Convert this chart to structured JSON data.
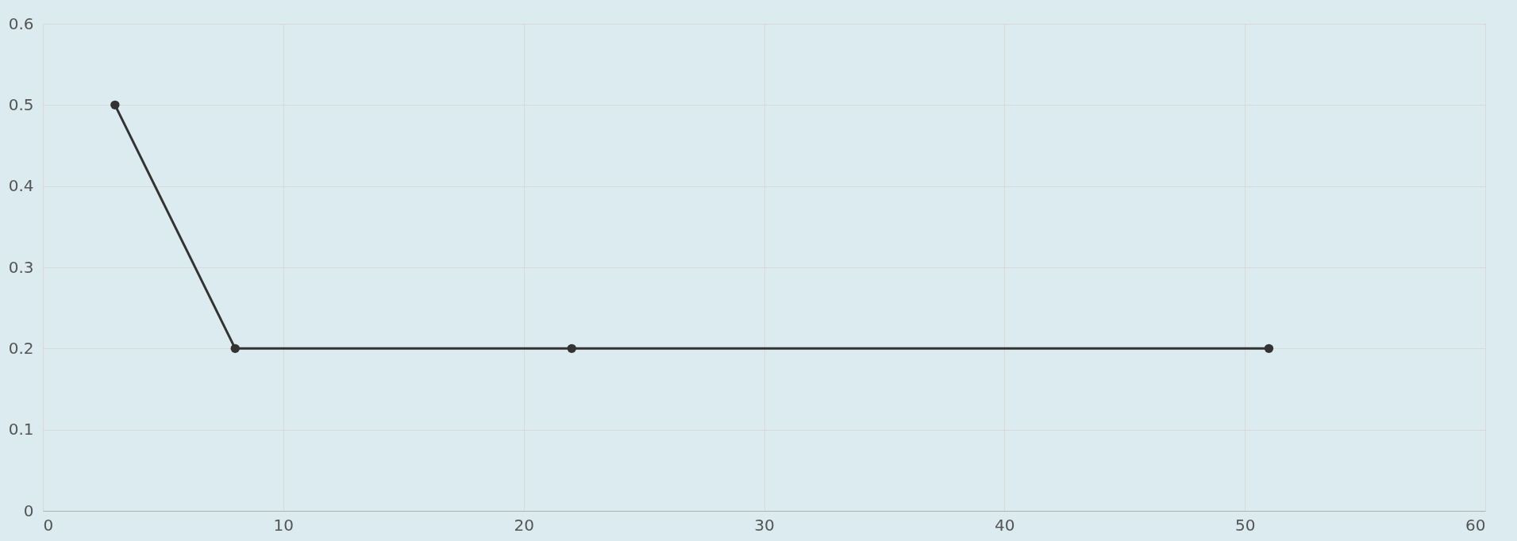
{
  "chart_data": {
    "type": "line",
    "x": [
      3,
      8,
      22,
      51
    ],
    "series": [
      {
        "color": "#333333",
        "values": [
          0.5,
          0.2,
          0.2,
          0.2
        ]
      }
    ],
    "xlim": [
      0,
      60
    ],
    "xticks": [
      0,
      10,
      20,
      30,
      40,
      50,
      60
    ],
    "ylim": [
      0,
      0.6
    ],
    "yticks": [
      0,
      0.1,
      0.2,
      0.3,
      0.4,
      0.5,
      0.6
    ],
    "grid": true,
    "marker": "circle",
    "line_style": "solid"
  }
}
